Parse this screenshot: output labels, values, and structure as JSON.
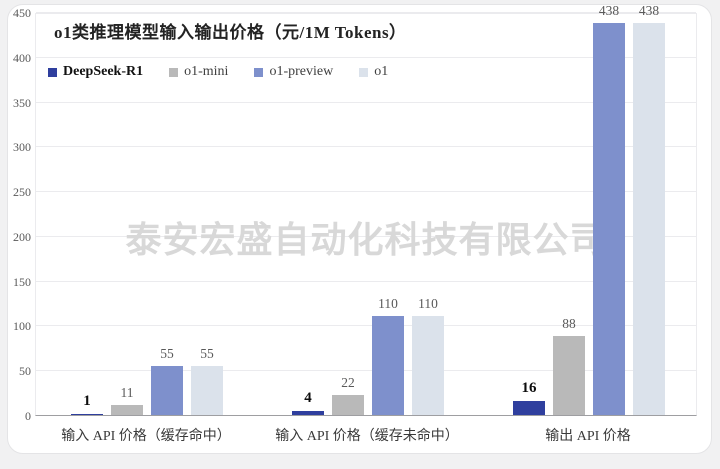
{
  "page": {
    "watermark": "泰安宏盛自动化科技有限公司"
  },
  "chart_data": {
    "type": "bar",
    "title": "o1类推理模型输入输出价格（元/1M Tokens）",
    "categories": [
      "输入 API 价格（缓存命中）",
      "输入 API 价格（缓存未命中）",
      "输出 API 价格"
    ],
    "series": [
      {
        "name": "DeepSeek-R1",
        "color": "#2f3f9e",
        "values": [
          1,
          4,
          16
        ],
        "emphasis": true
      },
      {
        "name": "o1-mini",
        "color": "#b9b9b9",
        "values": [
          11,
          22,
          88
        ],
        "emphasis": false
      },
      {
        "name": "o1-preview",
        "color": "#7e90cc",
        "values": [
          55,
          110,
          438
        ],
        "emphasis": false
      },
      {
        "name": "o1",
        "color": "#dbe2eb",
        "values": [
          55,
          110,
          438
        ],
        "emphasis": false
      }
    ],
    "ylim": [
      0,
      450
    ],
    "yticks": [
      0,
      50,
      100,
      150,
      200,
      250,
      300,
      350,
      400,
      450
    ],
    "grid": true,
    "legend_position": "top-left"
  }
}
